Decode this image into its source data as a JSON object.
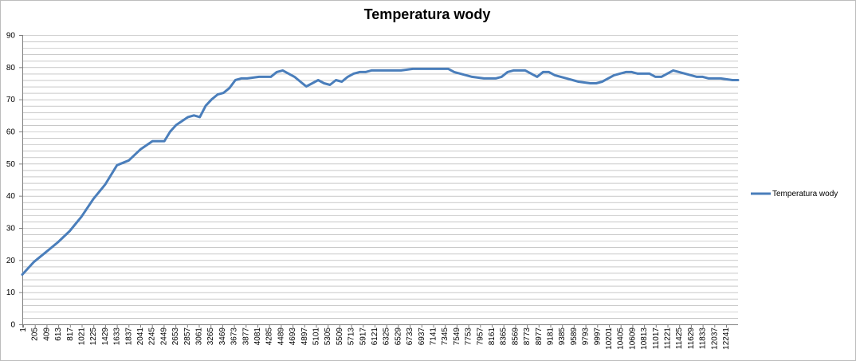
{
  "chart_data": {
    "type": "line",
    "title": "Temperatura wody",
    "xlabel": "",
    "ylabel": "",
    "ylim": [
      0,
      90
    ],
    "y_ticks": [
      "0",
      "10",
      "20",
      "30",
      "40",
      "50",
      "60",
      "70",
      "80",
      "90"
    ],
    "x_ticks": [
      "1",
      "205",
      "409",
      "613",
      "817",
      "1021",
      "1225",
      "1429",
      "1633",
      "1837",
      "2041",
      "2245",
      "2449",
      "2653",
      "2857",
      "3061",
      "3265",
      "3469",
      "3673",
      "3877",
      "4081",
      "4285",
      "4489",
      "4693",
      "4897",
      "5101",
      "5305",
      "5509",
      "5713",
      "5917",
      "6121",
      "6325",
      "6529",
      "6733",
      "6937",
      "7141",
      "7345",
      "7549",
      "7753",
      "7957",
      "8161",
      "8365",
      "8569",
      "8773",
      "8977",
      "9181",
      "9385",
      "9589",
      "9793",
      "9997",
      "10201",
      "10405",
      "10609",
      "10813",
      "11017",
      "11221",
      "11425",
      "11629",
      "11833",
      "12037",
      "12241"
    ],
    "grid": "horizontal",
    "minor_grid_step": 2,
    "legend_position": "right",
    "colors": {
      "series": "#4a7ebb",
      "grid": "#8c8c8c"
    },
    "series": [
      {
        "name": "Temperatura wody",
        "x": [
          1,
          205,
          409,
          613,
          817,
          1021,
          1225,
          1429,
          1633,
          1837,
          2041,
          2245,
          2449,
          2551,
          2653,
          2857,
          2959,
          3061,
          3163,
          3265,
          3367,
          3469,
          3571,
          3673,
          3775,
          3877,
          4081,
          4285,
          4387,
          4489,
          4591,
          4693,
          4795,
          4897,
          4999,
          5101,
          5203,
          5305,
          5407,
          5509,
          5611,
          5713,
          5815,
          5917,
          6019,
          6121,
          6325,
          6529,
          6733,
          6937,
          7141,
          7345,
          7447,
          7549,
          7651,
          7753,
          7957,
          8161,
          8263,
          8365,
          8467,
          8569,
          8671,
          8773,
          8875,
          8977,
          9079,
          9181,
          9283,
          9385,
          9589,
          9793,
          9895,
          9997,
          10099,
          10201,
          10405,
          10507,
          10609,
          10813,
          10915,
          11017,
          11119,
          11221,
          11323,
          11425,
          11629,
          11731,
          11833,
          12037,
          12241,
          12339
        ],
        "values": [
          15.5,
          19.5,
          22.5,
          25.5,
          29,
          33.5,
          39,
          43.5,
          49.5,
          51,
          54.5,
          57,
          57,
          60,
          62,
          64.5,
          65,
          64.5,
          68,
          70,
          71.5,
          72,
          73.5,
          76,
          76.5,
          76.5,
          77,
          77,
          78.5,
          79,
          78,
          77,
          75.5,
          74,
          75,
          76,
          75,
          74.5,
          76,
          75.5,
          77,
          78,
          78.5,
          78.5,
          79,
          79,
          79,
          79,
          79.5,
          79.5,
          79.5,
          79.5,
          78.5,
          78,
          77.5,
          77,
          76.5,
          76.5,
          77,
          78.5,
          79,
          79,
          79,
          78,
          77,
          78.5,
          78.5,
          77.5,
          77,
          76.5,
          75.5,
          75,
          75,
          75.5,
          76.5,
          77.5,
          78.5,
          78.5,
          78,
          78,
          77,
          77,
          78,
          79,
          78.5,
          78,
          77,
          77,
          76.5,
          76.5,
          76,
          76
        ]
      }
    ]
  }
}
